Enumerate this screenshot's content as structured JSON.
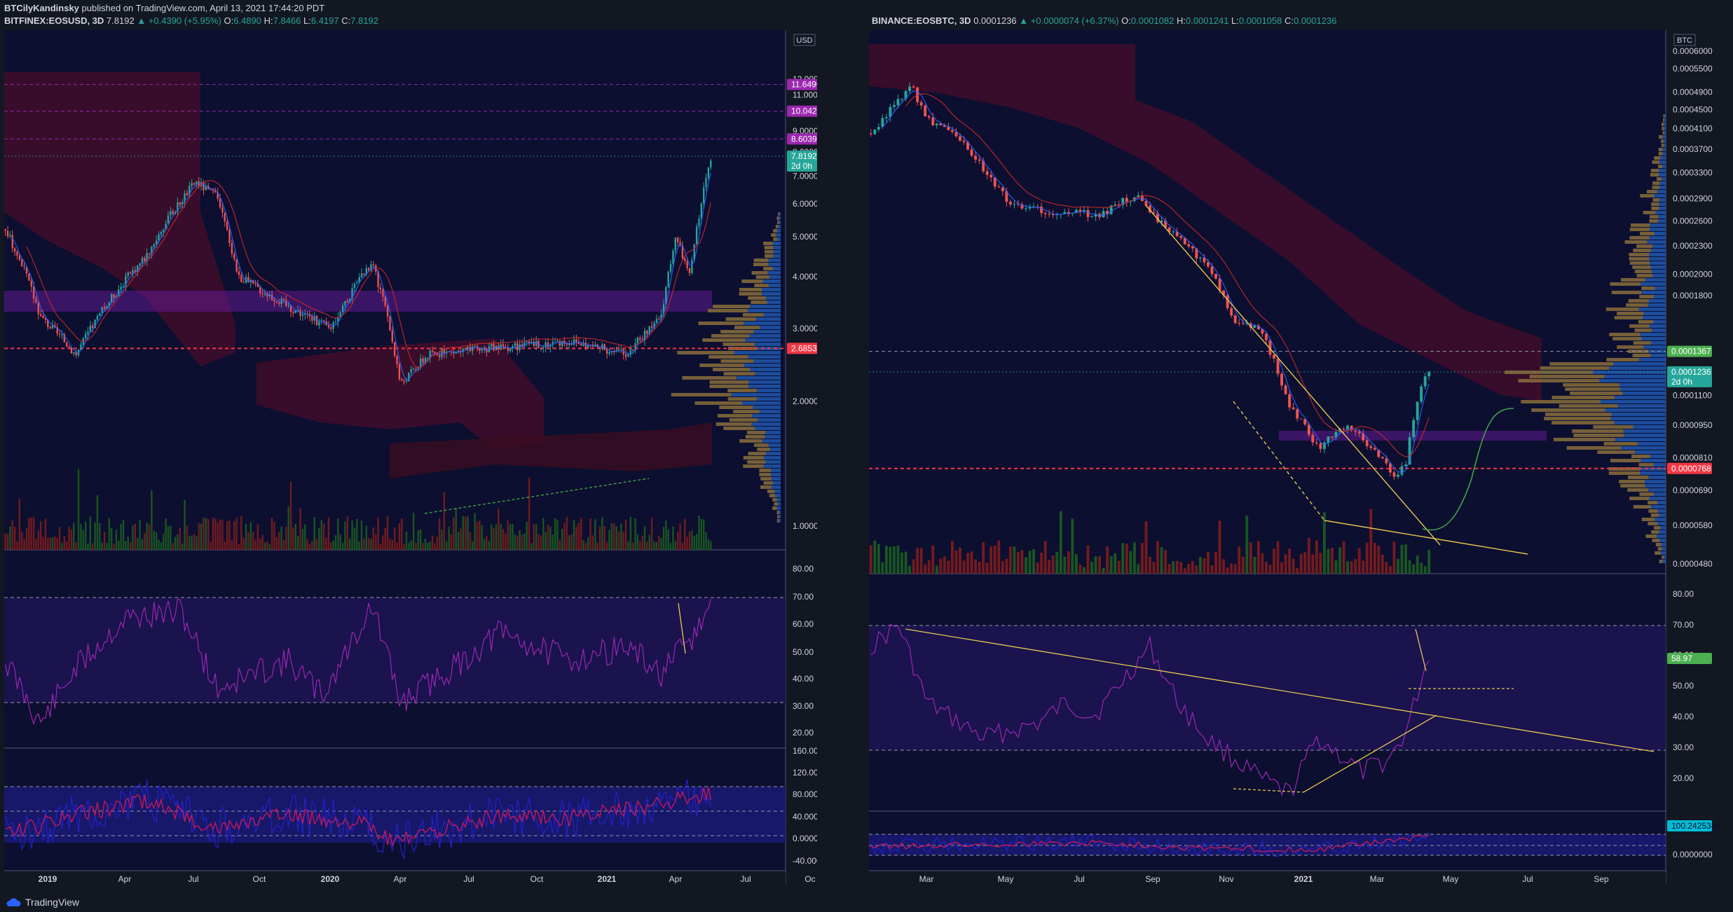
{
  "header": {
    "author": "BTCilyKandinsky",
    "published": "published on TradingView.com, April 13, 2021 17:44:20 PDT"
  },
  "left": {
    "symbol": "BITFINEX:EOSUSD, 3D",
    "price": "7.8192",
    "change": "+0.4390 (+5.95%)",
    "o": "6.4890",
    "h": "7.8466",
    "l": "6.4197",
    "c": "7.8192",
    "currency": "USD",
    "axis_labels": [
      "12.0000",
      "11.0000",
      "9.0000",
      "8.0000",
      "7.0000",
      "6.0000",
      "5.0000",
      "4.0000",
      "3.0000",
      "2.0000",
      "1.0000"
    ],
    "tags": [
      {
        "text": "11.6496",
        "color": "#9c27b0",
        "value": 11.6496
      },
      {
        "text": "10.0420",
        "color": "#9c27b0",
        "value": 10.042
      },
      {
        "text": "8.6039",
        "color": "#9c27b0",
        "value": 8.6039
      },
      {
        "text": "7.8192",
        "sub": "2d 0h",
        "color": "#26a69a",
        "value": 7.8192
      },
      {
        "text": "2.6853",
        "color": "#f23645",
        "value": 2.6853
      }
    ],
    "rsi_labels": [
      "80.00",
      "70.00",
      "60.00",
      "50.00",
      "40.00",
      "30.00",
      "20.00"
    ],
    "osc_labels": [
      "160.0000",
      "120.0000",
      "80.0000",
      "40.0000",
      "0.0000",
      "-40.0000"
    ],
    "time_labels": [
      "2019",
      "Apr",
      "Jul",
      "Oct",
      "2020",
      "Apr",
      "Jul",
      "Oct",
      "2021",
      "Apr",
      "Jul",
      "Oc"
    ]
  },
  "right": {
    "symbol": "BINANCE:EOSBTC, 3D",
    "price": "0.0001236",
    "change": "+0.0000074 (+6.37%)",
    "o": "0.0001082",
    "h": "0.0001241",
    "l": "0.0001058",
    "c": "0.0001236",
    "currency": "BTC",
    "axis_labels": [
      "0.0006000",
      "0.0005500",
      "0.0004900",
      "0.0004500",
      "0.0004100",
      "0.0003700",
      "0.0003300",
      "0.0002900",
      "0.0002600",
      "0.0002300",
      "0.0002000",
      "0.0001800",
      "0.0001100",
      "0.0000950",
      "0.0000810",
      "0.0000690",
      "0.0000580",
      "0.0000480"
    ],
    "tags": [
      {
        "text": "0.0001367",
        "color": "#4caf50",
        "value": 0.0001367
      },
      {
        "text": "0.0001236",
        "sub": "2d 0h",
        "color": "#26a69a",
        "value": 0.0001236
      },
      {
        "text": "0.0000768",
        "color": "#f23645",
        "value": 7.68e-05
      }
    ],
    "rsi_labels": [
      "80.00",
      "70.00",
      "60.00",
      "50.00",
      "40.00",
      "30.00",
      "20.00"
    ],
    "rsi_tag": {
      "text": "58.97",
      "color": "#4caf50"
    },
    "osc_labels": [
      "0.0000000"
    ],
    "osc_tag": {
      "text": "100.2425342",
      "color": "#00bcd4"
    },
    "time_labels": [
      "Mar",
      "May",
      "Jul",
      "Sep",
      "Nov",
      "2021",
      "Mar",
      "May",
      "Jul",
      "Sep"
    ]
  },
  "footer": {
    "brand": "TradingView"
  },
  "chart_data": [
    {
      "type": "line",
      "title": "BITFINEX:EOSUSD, 3D",
      "x": [
        "2018-11",
        "2019-01",
        "2019-04",
        "2019-06",
        "2019-08",
        "2019-10",
        "2020-01",
        "2020-03",
        "2020-06",
        "2020-09",
        "2020-12",
        "2021-02",
        "2021-03",
        "2021-04"
      ],
      "series": [
        {
          "values": [
            5.2,
            2.7,
            5.5,
            7.8,
            4.0,
            3.0,
            2.8,
            2.1,
            2.8,
            2.8,
            2.5,
            3.5,
            4.5,
            7.8
          ]
        }
      ],
      "ylim": [
        0.5,
        13
      ],
      "grid": false
    },
    {
      "type": "line",
      "title": "BINANCE:EOSBTC, 3D",
      "x": [
        "2020-02",
        "2020-03",
        "2020-04",
        "2020-06",
        "2020-08",
        "2020-09",
        "2020-10",
        "2020-11",
        "2020-12",
        "2021-01",
        "2021-02",
        "2021-03",
        "2021-04"
      ],
      "series": [
        {
          "values": [
            0.00043,
            0.00052,
            0.00036,
            0.00027,
            0.00026,
            0.0003,
            0.00022,
            0.00015,
            9.5e-05,
            8.5e-05,
            8.8e-05,
            7.2e-05,
            0.0001236
          ]
        }
      ],
      "ylim": [
        4e-05,
        0.00063
      ],
      "grid": false
    }
  ]
}
